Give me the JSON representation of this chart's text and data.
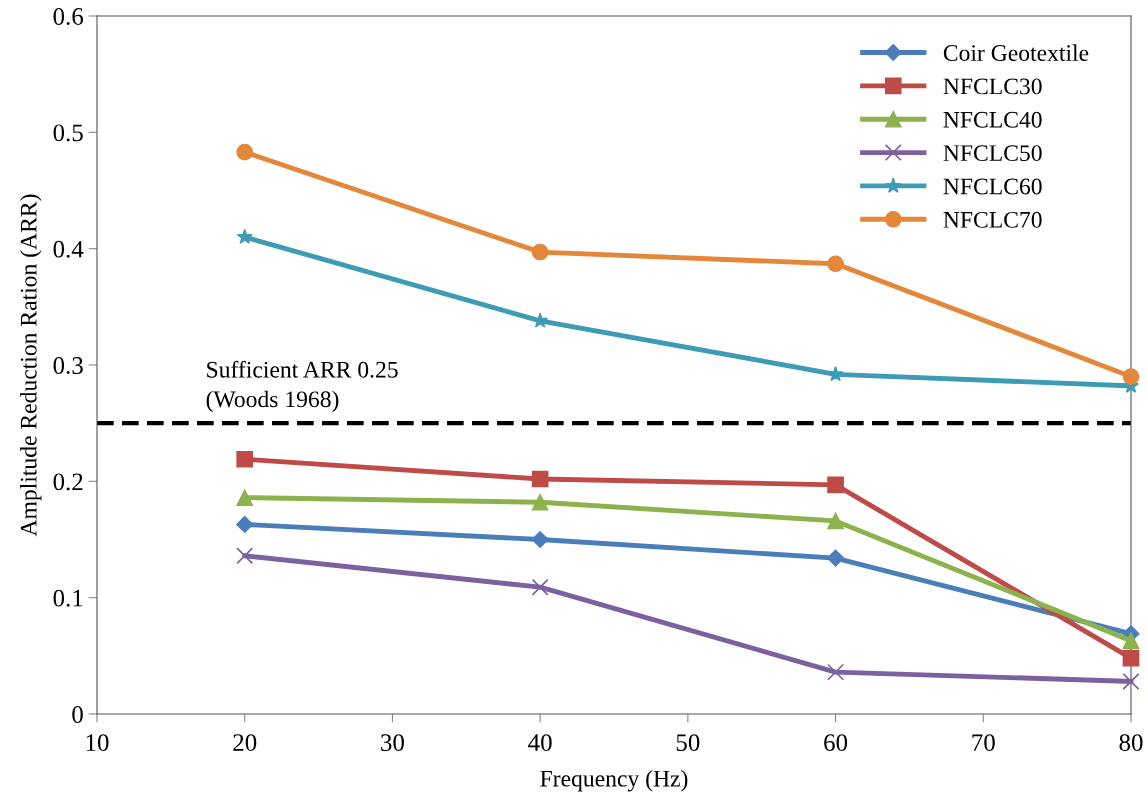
{
  "chart_data": {
    "type": "line",
    "xlabel": "Frequency (Hz)",
    "ylabel": "Amplitude Reduction Ration (ARR)",
    "x": [
      20,
      40,
      60,
      80
    ],
    "xlim": [
      10,
      80
    ],
    "xticks": [
      10,
      20,
      30,
      40,
      50,
      60,
      70,
      80
    ],
    "ylim": [
      0,
      0.6
    ],
    "yticks": [
      0,
      0.1,
      0.2,
      0.3,
      0.4,
      0.5,
      0.6
    ],
    "grid": false,
    "legend": "top right",
    "line_style": "solid",
    "series": [
      {
        "name": "Coir Geotextile",
        "color": "#4a7ebb",
        "marker": "diamond",
        "values": [
          0.163,
          0.15,
          0.134,
          0.069
        ]
      },
      {
        "name": "NFCLC30",
        "color": "#be4b48",
        "marker": "square",
        "values": [
          0.219,
          0.202,
          0.197,
          0.048
        ]
      },
      {
        "name": "NFCLC40",
        "color": "#8cb24d",
        "marker": "triangle",
        "values": [
          0.186,
          0.182,
          0.166,
          0.063
        ]
      },
      {
        "name": "NFCLC50",
        "color": "#7d60a0",
        "marker": "cross",
        "values": [
          0.136,
          0.109,
          0.036,
          0.028
        ]
      },
      {
        "name": "NFCLC60",
        "color": "#3e9bb5",
        "marker": "star",
        "values": [
          0.41,
          0.338,
          0.292,
          0.282
        ]
      },
      {
        "name": "NFCLC70",
        "color": "#e3873a",
        "marker": "circle",
        "values": [
          0.483,
          0.397,
          0.387,
          0.29
        ]
      }
    ],
    "ref_lines": [
      {
        "axis": "y",
        "value": 0.25,
        "label": "Sufficient ARR 0.25\n(Woods 1968)",
        "color": "#000000",
        "line_style": "dashed"
      }
    ]
  }
}
